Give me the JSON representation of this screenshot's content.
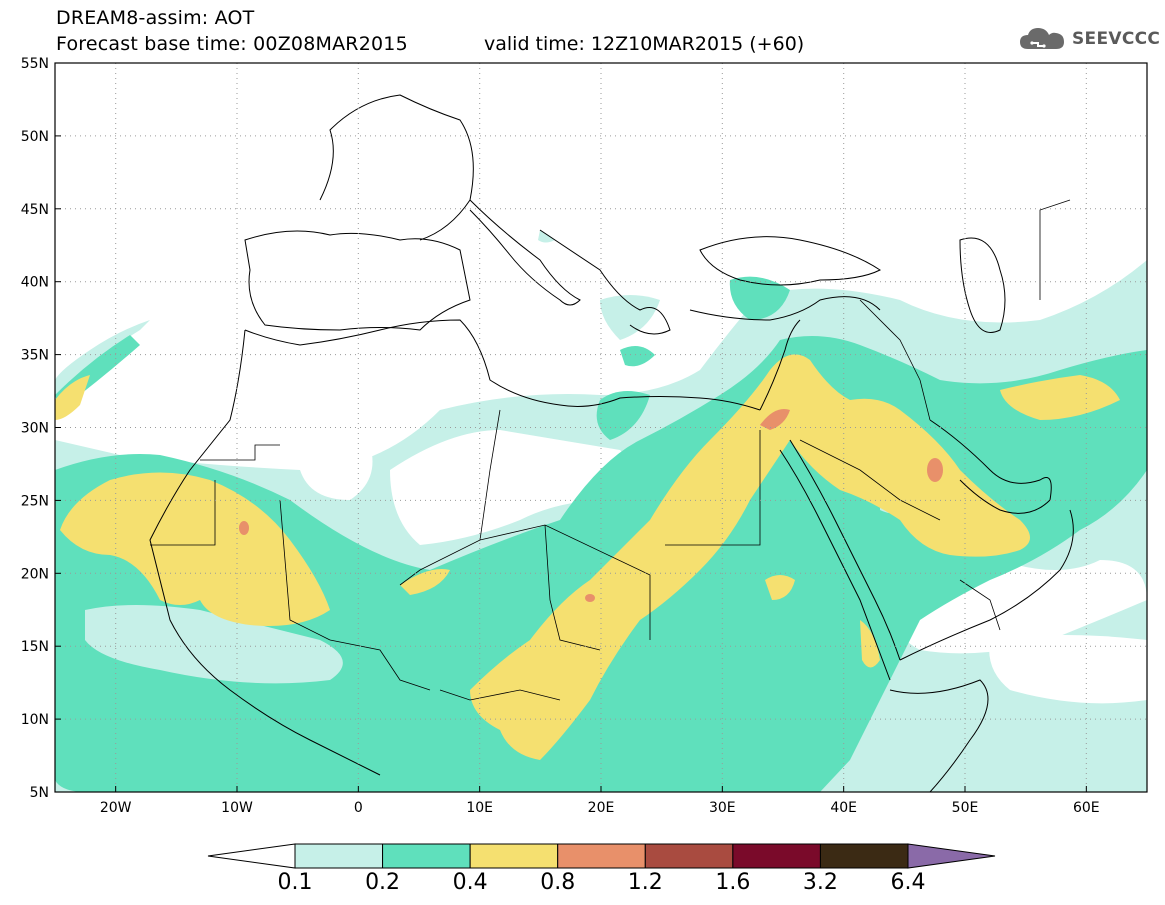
{
  "title": {
    "line1": "DREAM8-assim: AOT",
    "line2": "Forecast base time: 00Z08MAR2015",
    "valid": "valid time: 12Z10MAR2015 (+60)"
  },
  "logo": {
    "text": "SEEVCCC",
    "icon": "cloud-icon"
  },
  "map": {
    "lon_range": [
      -25,
      65
    ],
    "lat_range": [
      5,
      55
    ],
    "lon_ticks": [
      "20W",
      "10W",
      "0",
      "10E",
      "20E",
      "30E",
      "40E",
      "50E",
      "60E"
    ],
    "lat_ticks": [
      "55N",
      "50N",
      "45N",
      "40N",
      "35N",
      "30N",
      "25N",
      "20N",
      "15N",
      "10N",
      "5N"
    ],
    "grid": "dotted"
  },
  "colorbar": {
    "labels": [
      "0.1",
      "0.2",
      "0.4",
      "0.8",
      "1.2",
      "1.6",
      "3.2",
      "6.4"
    ],
    "colors": [
      "#c6f0e8",
      "#5fe0bc",
      "#f5e070",
      "#e8906a",
      "#a94b40",
      "#7a0a2a",
      "#3b2a14"
    ],
    "under_color": "#ffffff",
    "over_color": "#8a6aa8"
  },
  "legend_colors": {
    "white": "#ffffff",
    "light_teal": "#c6f0e8",
    "teal": "#5fe0bc",
    "yellow": "#f5e070",
    "salmon": "#e8906a"
  }
}
